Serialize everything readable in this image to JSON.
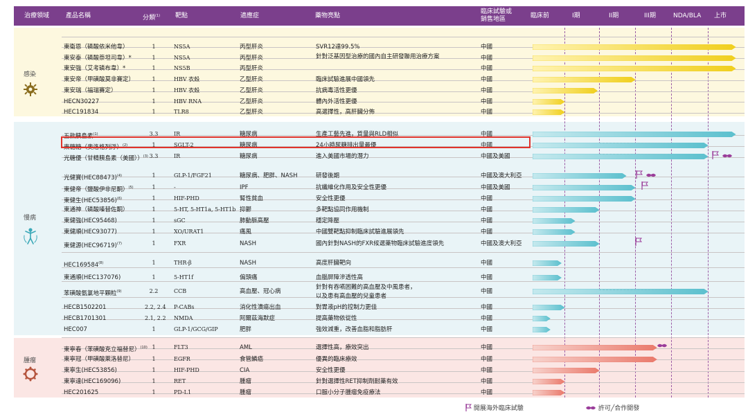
{
  "header": {
    "area": "治療領域",
    "name": "產品名稱",
    "class": "分類",
    "class_note": "(1)",
    "target": "靶點",
    "indication": "適應症",
    "feature": "藥物亮點",
    "region": "臨床試驗或\n銷售地區",
    "preclinical": "臨床前",
    "p1": "I期",
    "p2": "II期",
    "p3": "III期",
    "nda": "NDA/BLA",
    "market": "上市"
  },
  "colors": {
    "header": "#7b3f8c",
    "infection_bar": "#f0cf1e",
    "chronic_bar": "#5cc0ce",
    "oncology_bar": "#ea7a6c",
    "highlight": "#e0332c",
    "icon": "#7b3f8c"
  },
  "categories": {
    "infection": {
      "label": "感染",
      "icon": "virus-icon"
    },
    "chronic": {
      "label": "慢病",
      "icon": "human-body-icon"
    },
    "oncology": {
      "label": "腫瘤",
      "icon": "cell-icon"
    }
  },
  "rows": [
    {
      "name": "東衛恩（磷酸依米他韋）",
      "class": "1",
      "target": "NS5A",
      "indication": "丙型肝炎",
      "feature": "SVR12達99.5%",
      "region": "中國",
      "stage": 6.0
    },
    {
      "name": "東安泰（磷酸萘坦司韋）*",
      "class": "1",
      "target": "NS5A",
      "indication": "丙型肝炎",
      "feature": "針對泛基因型治療的國內自主研發聯用治療方案",
      "region": "中國",
      "stage": 6.0
    },
    {
      "name": "東安強（艾考磷布韋）*",
      "class": "1",
      "target": "NS5B",
      "indication": "丙型肝炎",
      "feature": "",
      "region": "中國",
      "stage": 6.0
    },
    {
      "name": "東安帝（甲磺酸莫非賽定）",
      "class": "1",
      "target": "HBV 衣殼",
      "indication": "乙型肝炎",
      "feature": "臨床試驗進展中國領先",
      "region": "中國",
      "stage": 3.0
    },
    {
      "name": "東安瑞（福瑞賽定）",
      "class": "1",
      "target": "HBV 衣殼",
      "indication": "乙型肝炎",
      "feature": "抗病毒活性更優",
      "region": "中國",
      "stage": 1.95
    },
    {
      "name": "HECN30227",
      "class": "1",
      "target": "HBV RNA",
      "indication": "乙型肝炎",
      "feature": "體內外活性更優",
      "region": "中國",
      "stage": 1.0
    },
    {
      "name": "HEC191834",
      "class": "1",
      "target": "TLR8",
      "indication": "乙型肝炎",
      "feature": "高選擇性，高肝臟分佈",
      "region": "中國",
      "stage": 1.0
    },
    {
      "name": "五款胰島素",
      "note": "(1)",
      "class": "3.3",
      "target": "IR",
      "indication": "糖尿病",
      "feature": "生產工藝先進，質量與RLD相似",
      "region": "中國",
      "stage": 6.0
    },
    {
      "name": "東糖糖（奧洛格列淨）",
      "note": "(2)",
      "class": "1",
      "target": "SGLT-2",
      "indication": "糖尿病",
      "feature": "24小時尿糖排出量最優",
      "region": "中國",
      "stage": 5.0,
      "highlight": true
    },
    {
      "name": "光糖優（甘精胰島素（美國））",
      "note": "(3)",
      "class": "3.3",
      "target": "IR",
      "indication": "糖尿病",
      "feature": "進入美國市場的潛力",
      "region": "中國及美國",
      "stage": 5.0
    },
    {
      "name": "光健寶(HEC88473)",
      "note": "(4)",
      "class": "1",
      "target": "GLP-1/FGF21",
      "indication": "糖尿病、肥胖、NASH",
      "feature": "研發後期",
      "region": "中國及澳大利亞",
      "stage": 2.75
    },
    {
      "name": "東健帝（鹽酸伊非尼酮）",
      "note": "(5)",
      "class": "1",
      "target": "-",
      "indication": "IPF",
      "feature": "抗纖維化作用及安全性更優",
      "region": "中國及美國",
      "stage": 3.0
    },
    {
      "name": "東健生(HEC53856)",
      "note": "(6)",
      "class": "1",
      "target": "HIF-PHD",
      "indication": "腎性貧血",
      "feature": "安全性更優",
      "region": "中國",
      "stage": 3.0
    },
    {
      "name": "東通神（磷酸嗪替佐酮）",
      "class": "1",
      "target": "5-HT, 5-HT1a, 5-HT1b",
      "indication": "抑鬱",
      "feature": "多靶點協同作用機制",
      "region": "中國",
      "stage": 2.0
    },
    {
      "name": "東健強(HEC95468)",
      "class": "1",
      "target": "sGC",
      "indication": "肺動脈高壓",
      "feature": "穩定降壓",
      "region": "中國",
      "stage": 1.3
    },
    {
      "name": "東健順(HEC93077)",
      "class": "1",
      "target": "XO/URAT1",
      "indication": "痛風",
      "feature": "中國雙靶點抑制臨床試驗進展領先",
      "region": "中國",
      "stage": 1.3
    },
    {
      "name": "東健源(HEC96719)",
      "note": "(7)",
      "class": "1",
      "target": "FXR",
      "indication": "NASH",
      "feature": "國內針對NASH的FXR候選藥物臨床試驗進度領先",
      "region": "中國及澳大利亞",
      "stage": 2.0
    },
    {
      "name": "HEC169584",
      "note": "(8)",
      "class": "1",
      "target": "THR-β",
      "indication": "NASH",
      "feature": "高度肝臟靶向",
      "region": "中國",
      "stage": 0.9
    },
    {
      "name": "東通順(HEC137076)",
      "class": "1",
      "target": "5-HT1f",
      "indication": "偏頭痛",
      "feature": "血腦屏障滲透性高",
      "region": "中國",
      "stage": 0.9
    },
    {
      "name": "苯磺酸氨氯地平顆粒",
      "note": "(9)",
      "class": "2.2",
      "target": "CCB",
      "indication": "高血壓、冠心病",
      "feature": "針對有吞嚥困難的高血壓及中風患者，",
      "feature2": "以及患有高血壓的兒童患者",
      "region": "中國",
      "stage": 5.0
    },
    {
      "name": "HECB1502201",
      "class": "2.2, 2.4",
      "target": "P-CABs",
      "indication": "消化性潰瘍出血",
      "feature": "對胃液pH的控制力更佳",
      "region": "中國",
      "stage": 1.0
    },
    {
      "name": "HECB1701301",
      "class": "2.1, 2.2",
      "target": "NMDA",
      "indication": "阿爾茲海默症",
      "feature": "提高藥物依從性",
      "region": "中國",
      "stage": 0.55
    },
    {
      "name": "HEC007",
      "class": "1",
      "target": "GLP-1/GCG/GIP",
      "indication": "肥胖",
      "feature": "強效減重，改善血脂和脂肪肝",
      "region": "中國",
      "stage": 0.55
    },
    {
      "name": "東寧春（苯磺酸克立福替尼）",
      "note": "(10)",
      "class": "1",
      "target": "FLT3",
      "indication": "AML",
      "feature": "選擇性高，療效突出",
      "region": "中國",
      "stage": 3.6
    },
    {
      "name": "東寧冠（甲磺酸萊洛替尼）",
      "class": "1",
      "target": "EGFR",
      "indication": "食管鱗癌",
      "feature": "優異的臨床療效",
      "region": "中國",
      "stage": 3.6
    },
    {
      "name": "東寧生(HEC53856)",
      "class": "1",
      "target": "HIF-PHD",
      "indication": "CIA",
      "feature": "安全性更優",
      "region": "中國",
      "stage": 2.0
    },
    {
      "name": "東寧達(HEC169096)",
      "class": "1",
      "target": "RET",
      "indication": "腫瘤",
      "feature": "針對選擇性RET抑制劑耐藥有效",
      "region": "中國",
      "stage": 1.0
    },
    {
      "name": "HEC201625",
      "class": "1",
      "target": "PD-L1",
      "indication": "腫瘤",
      "feature": "口服小分子腫瘤免疫療法",
      "region": "中國",
      "stage": 1.0
    }
  ],
  "legend": {
    "overseas": "開展海外臨床試驗",
    "license": "許可╱合作開發"
  }
}
